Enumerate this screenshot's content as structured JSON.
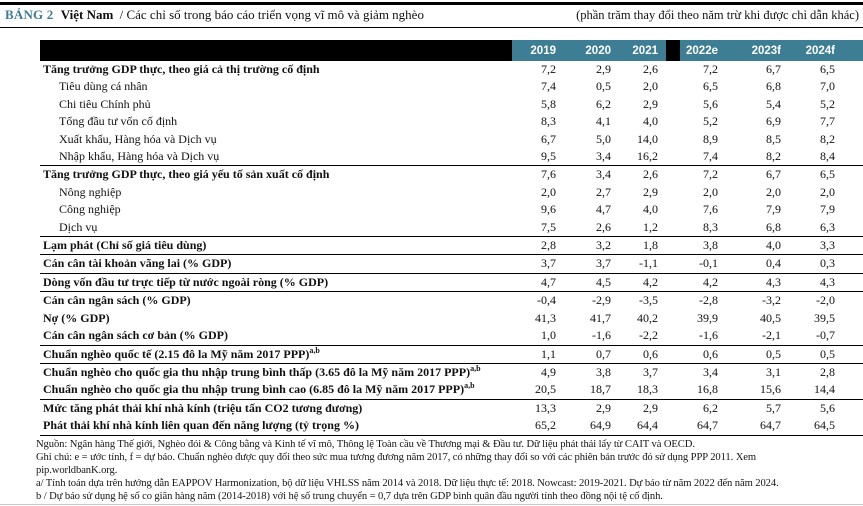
{
  "header": {
    "tag": "BẢNG 2",
    "country": "Việt Nam",
    "subtitle": "/ Các chỉ số trong báo cáo triển vọng vĩ mô và giảm nghèo",
    "units_note": "(phần trăm thay đổi theo năm trừ khi được chỉ dẫn khác)"
  },
  "colors": {
    "accent_teal": "#3e7e94",
    "header_band": "#000000"
  },
  "table": {
    "columns": [
      "2019",
      "2020",
      "2021",
      "2022e",
      "2023f",
      "2024f"
    ],
    "rows": [
      {
        "label": "Tăng trưởng GDP thực, theo giá cả thị trường cố định",
        "bold": true,
        "values": [
          "7,2",
          "2,9",
          "2,6",
          "7,2",
          "6,7",
          "6,5"
        ]
      },
      {
        "label": "Tiêu dùng cá nhân",
        "indent": true,
        "values": [
          "7,4",
          "0,5",
          "2,0",
          "6,5",
          "6,8",
          "7,0"
        ]
      },
      {
        "label": "Chi tiêu Chính phủ",
        "indent": true,
        "values": [
          "5,8",
          "6,2",
          "2,9",
          "5,6",
          "5,4",
          "5,2"
        ]
      },
      {
        "label": "Tổng đầu tư vốn cố định",
        "indent": true,
        "values": [
          "8,3",
          "4,1",
          "4,0",
          "5,2",
          "6,9",
          "7,7"
        ]
      },
      {
        "label": "Xuất khẩu, Hàng hóa và Dịch vụ",
        "indent": true,
        "values": [
          "6,7",
          "5,0",
          "14,0",
          "8,9",
          "8,5",
          "8,2"
        ]
      },
      {
        "label": "Nhập khẩu, Hàng hóa và Dịch vụ",
        "indent": true,
        "section_end": true,
        "values": [
          "9,5",
          "3,4",
          "16,2",
          "7,4",
          "8,2",
          "8,4"
        ]
      },
      {
        "label": "Tăng trưởng GDP thực, theo giá yếu tố sản xuất cố định",
        "bold": true,
        "values": [
          "7,6",
          "3,4",
          "2,6",
          "7,2",
          "6,7",
          "6,5"
        ]
      },
      {
        "label": "Nông nghiệp",
        "indent": true,
        "values": [
          "2,0",
          "2,7",
          "2,9",
          "2,0",
          "2,0",
          "2,0"
        ]
      },
      {
        "label": "Công nghiệp",
        "indent": true,
        "values": [
          "9,6",
          "4,7",
          "4,0",
          "7,6",
          "7,9",
          "7,9"
        ]
      },
      {
        "label": "Dịch vụ",
        "indent": true,
        "section_end": true,
        "values": [
          "7,5",
          "2,6",
          "1,2",
          "8,3",
          "6,8",
          "6,3"
        ]
      },
      {
        "label": "Lạm phát (Chỉ số giá tiêu dùng)",
        "bold": true,
        "section_end": true,
        "values": [
          "2,8",
          "3,2",
          "1,8",
          "3,8",
          "4,0",
          "3,3"
        ]
      },
      {
        "label": "Cán cân tài khoản vãng lai (% GDP)",
        "bold": true,
        "section_end": true,
        "values": [
          "3,7",
          "3,7",
          "-1,1",
          "-0,1",
          "0,4",
          "0,3"
        ]
      },
      {
        "label": "Dòng vốn đầu tư trực tiếp từ nước ngoài ròng (% GDP)",
        "bold": true,
        "section_end": true,
        "values": [
          "4,7",
          "4,5",
          "4,2",
          "4,2",
          "4,3",
          "4,3"
        ]
      },
      {
        "label": "Cán cân ngân sách (% GDP)",
        "bold": true,
        "values": [
          "-0,4",
          "-2,9",
          "-3,5",
          "-2,8",
          "-3,2",
          "-2,0"
        ]
      },
      {
        "label": "Nợ (% GDP)",
        "bold": true,
        "values": [
          "41,3",
          "41,7",
          "40,2",
          "39,9",
          "40,5",
          "39,5"
        ]
      },
      {
        "label": "Cán cân ngân sách cơ bản (% GDP)",
        "bold": true,
        "section_end": true,
        "values": [
          "1,0",
          "-1,6",
          "-2,2",
          "-1,6",
          "-2,1",
          "-0,7"
        ]
      },
      {
        "label": "Chuẩn nghèo quốc tế (2.15 đô la Mỹ năm 2017 PPP)",
        "sup": "a,b",
        "bold": true,
        "section_end": true,
        "values": [
          "1,1",
          "0,7",
          "0,6",
          "0,6",
          "0,5",
          "0,5"
        ]
      },
      {
        "label": "Chuẩn nghèo cho quốc gia thu nhập trung bình thấp (3.65 đô la Mỹ năm 2017 PPP)",
        "sup": "a,b",
        "bold": true,
        "values": [
          "4,9",
          "3,8",
          "3,7",
          "3,4",
          "3,1",
          "2,8"
        ]
      },
      {
        "label": "Chuẩn nghèo cho quốc gia thu nhập trung bình cao (6.85 đô la Mỹ năm 2017 PPP)",
        "sup": "a,b",
        "bold": true,
        "section_end": true,
        "values": [
          "20,5",
          "18,7",
          "18,3",
          "16,8",
          "15,6",
          "14,4"
        ]
      },
      {
        "label": "Mức tăng phát thải khí nhà kính (triệu tấn CO2 tương đương)",
        "bold": true,
        "values": [
          "13,3",
          "2,9",
          "2,9",
          "6,2",
          "5,7",
          "5,6"
        ]
      },
      {
        "label": "Phát thải khí nhà kính liên quan đến năng lượng (tỷ trọng %)",
        "bold": true,
        "section_end": true,
        "values": [
          "65,2",
          "64,9",
          "64,4",
          "64,7",
          "64,7",
          "64,5"
        ]
      }
    ]
  },
  "footnotes": {
    "lines": [
      "Nguồn: Ngân hàng Thế giới, Nghèo đói & Công bằng và Kinh tế vĩ mô, Thông lệ Toàn cầu về Thương mại & Đầu tư. Dữ liệu phát thải lấy từ CAIT và OECD.",
      "Ghi chú: e = ước tính, f = dự báo. Chuẩn nghèo được quy đổi theo sức mua tương đương năm 2017, có những thay đổi so với các phiên bản trước đó sử dụng PPP 2011. Xem",
      "pip.worldbanK.org.",
      "a/ Tính toán dựa trên hướng dẫn EAPPOV Harmonization, bộ dữ liệu VHLSS năm 2014 và 2018. Dữ liệu thực tế: 2018. Nowcast: 2019-2021. Dự báo từ năm 2022 đến năm 2024.",
      "b / Dự báo sử dụng hệ số co giãn hàng năm (2014-2018) với hệ số trung chuyển = 0,7 dựa trên GDP bình quân đầu người tính theo đồng nội tệ cố định."
    ]
  }
}
